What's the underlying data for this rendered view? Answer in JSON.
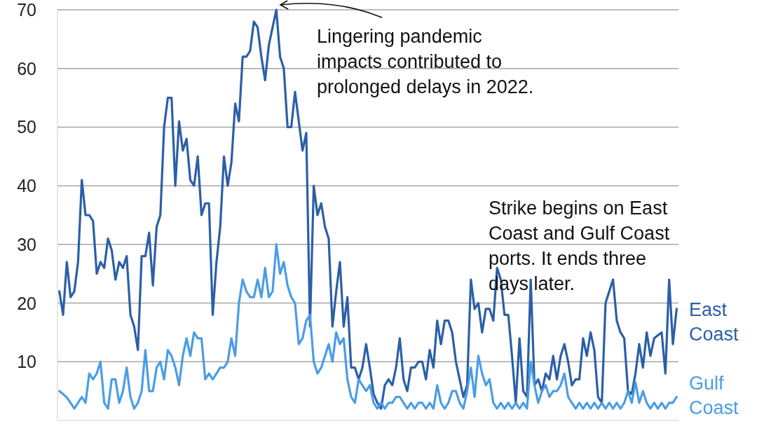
{
  "chart_data": {
    "type": "line",
    "categories": [
      null,
      null,
      null,
      null,
      null,
      null,
      null,
      null,
      null,
      null,
      null,
      null,
      null,
      null,
      null,
      null,
      null,
      null,
      null,
      null,
      null,
      null,
      null,
      null,
      null,
      null,
      null,
      null,
      null,
      null,
      null,
      null,
      null,
      null,
      null,
      null,
      null,
      null,
      null,
      null,
      null,
      null,
      null,
      null,
      null,
      null,
      null,
      null,
      null,
      null,
      null,
      null,
      null,
      null,
      null,
      null,
      null,
      null,
      null,
      null,
      null,
      null,
      null,
      null,
      null,
      null,
      null,
      null,
      null,
      null,
      null,
      null,
      null,
      null,
      null,
      null,
      null,
      null,
      null,
      null,
      null,
      null,
      null,
      null,
      null,
      null,
      null,
      null,
      null,
      null,
      null,
      null,
      null,
      null,
      null,
      null,
      null,
      null,
      null,
      null,
      null,
      null,
      null,
      null,
      null,
      null,
      null,
      null,
      null,
      null,
      null,
      null,
      null,
      null,
      null,
      null,
      null,
      null,
      null,
      null,
      null,
      null,
      null,
      null,
      null,
      null,
      null,
      null,
      null,
      null,
      null,
      null,
      null,
      null,
      null,
      null,
      null,
      null,
      null,
      null,
      null,
      null,
      null,
      null,
      null,
      null,
      null,
      null,
      null,
      null,
      null,
      null,
      null,
      null,
      null,
      null,
      null,
      null,
      null,
      null,
      null,
      null,
      null,
      null,
      null,
      null
    ],
    "series": [
      {
        "name": "East Coast",
        "color": "#2b5fa8",
        "values": [
          22,
          18,
          27,
          21,
          22,
          27,
          41,
          35,
          35,
          34,
          25,
          27,
          26,
          31,
          29,
          24,
          27,
          26,
          28,
          18,
          16,
          12,
          28,
          28,
          32,
          23,
          33,
          35,
          50,
          55,
          55,
          40,
          51,
          46,
          48,
          41,
          40,
          45,
          35,
          37,
          37,
          18,
          27,
          33,
          45,
          40,
          44,
          54,
          51,
          62,
          62,
          63,
          68,
          67,
          62,
          58,
          64,
          67,
          70,
          62,
          60,
          50,
          50,
          56,
          51,
          46,
          49,
          16,
          40,
          35,
          37,
          33,
          31,
          16,
          22,
          27,
          16,
          21,
          9,
          9,
          7,
          9,
          13,
          9,
          4.5,
          3,
          2,
          6,
          7,
          6,
          9,
          14,
          7,
          5,
          9,
          9,
          10,
          10,
          7,
          12,
          9,
          17,
          13,
          17,
          17,
          15,
          10,
          7,
          4,
          6,
          24,
          19,
          20,
          15,
          19,
          19,
          17,
          26,
          24,
          18,
          18,
          11,
          3,
          14,
          5,
          4,
          24,
          6,
          7,
          5,
          8,
          7,
          11,
          7,
          11,
          13,
          10,
          6,
          7,
          7,
          14,
          11,
          15,
          12,
          4,
          3,
          20,
          22,
          24,
          17,
          15,
          14,
          5,
          4.5,
          8,
          13,
          9,
          15,
          11,
          14,
          14.5,
          15,
          8,
          24,
          13,
          19
        ]
      },
      {
        "name": "Gulf Coast",
        "color": "#4a9de6",
        "values": [
          5,
          4.5,
          3.9,
          3,
          2,
          3,
          4,
          3,
          8,
          7,
          8,
          10,
          3,
          2,
          7,
          7,
          3,
          5,
          9,
          4,
          2,
          3,
          5,
          12,
          5,
          5,
          9,
          10,
          7,
          12,
          11,
          9,
          6,
          11,
          14,
          11,
          15,
          14,
          14,
          7,
          8,
          7,
          8,
          9,
          9,
          10,
          14,
          11,
          20,
          24,
          22,
          21,
          21,
          24,
          21,
          26,
          21,
          22,
          30,
          25,
          27,
          23,
          21,
          20,
          13,
          14,
          17,
          18,
          10,
          8,
          9,
          11,
          13,
          10,
          15,
          13,
          14,
          7,
          4,
          3,
          7,
          6,
          5,
          6,
          3,
          2,
          3,
          2,
          3,
          3,
          4,
          4,
          3,
          2,
          3,
          2,
          3,
          3,
          2,
          3,
          2,
          6,
          3,
          2,
          3,
          5,
          5,
          3,
          2,
          5,
          9,
          4,
          11,
          8,
          6,
          7,
          3,
          2,
          3,
          2,
          3,
          2,
          3,
          2,
          3,
          2,
          10,
          6,
          3,
          5,
          6,
          4,
          5,
          5,
          6,
          8,
          4,
          3,
          2,
          3,
          2,
          3,
          2,
          3,
          2,
          3,
          2,
          3,
          2,
          3,
          2,
          3,
          5,
          3,
          6.5,
          3,
          5,
          3,
          2,
          3,
          2,
          3,
          2,
          3,
          3,
          4
        ]
      }
    ],
    "ylim": [
      0,
      70
    ],
    "yticks": [
      10,
      20,
      30,
      40,
      50,
      60,
      70
    ],
    "grid": "y",
    "tick_labels": "y",
    "annotations": [
      "Lingering pandemic impacts contributed to prolonged delays in 2022.",
      "Strike begins on East Coast and Gulf Coast ports. It ends three days later."
    ]
  }
}
